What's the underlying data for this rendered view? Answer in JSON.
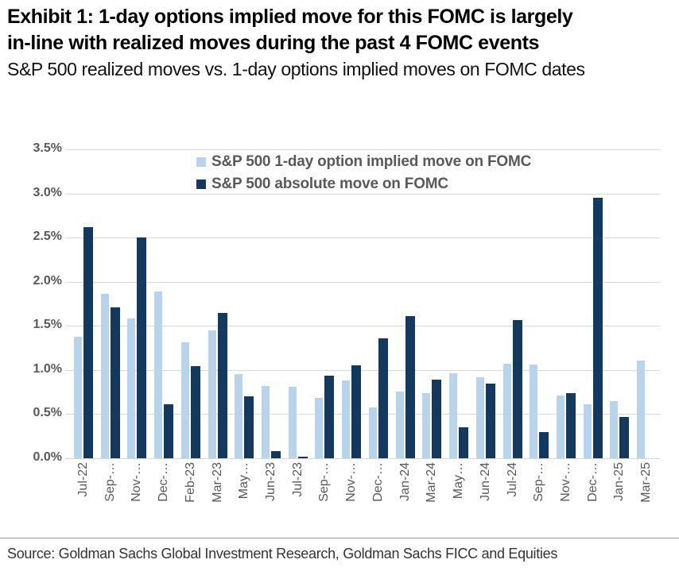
{
  "header": {
    "title_line1": "Exhibit 1: 1-day options implied move for this FOMC is largely",
    "title_line2": "in-line with realized moves during the past 4 FOMC events",
    "subtitle": "S&P 500 realized moves vs. 1-day options implied moves on FOMC dates"
  },
  "footer": {
    "source": "Source: Goldman Sachs Global Investment Research, Goldman Sachs FICC and Equities"
  },
  "colors": {
    "implied_bar": "#B8D4EC",
    "realized_bar": "#14395E",
    "gridline": "#D9D9D9",
    "axis_text": "#595959",
    "legend_text": "#595959"
  },
  "chart_data": {
    "type": "bar",
    "title": "",
    "xlabel": "",
    "ylabel": "",
    "ylim": [
      0,
      3.5
    ],
    "grid": "horizontal",
    "legend_position": "top-inside",
    "y_tick_labels": [
      "3.5%",
      "3.0%",
      "2.5%",
      "2.0%",
      "1.5%",
      "1.0%",
      "0.5%",
      "0.0%"
    ],
    "categories": [
      "Jul-22",
      "Sep-…",
      "Nov-…",
      "Dec-…",
      "Feb-23",
      "Mar-23",
      "May…",
      "Jun-23",
      "Jul-23",
      "Sep-…",
      "Nov-…",
      "Dec-…",
      "Jan-24",
      "Mar-24",
      "May…",
      "Jun-24",
      "Jul-24",
      "Sep-…",
      "Nov-…",
      "Dec-…",
      "Jan-25",
      "Mar-25"
    ],
    "series": [
      {
        "name": "S&P 500 1-day option implied move on FOMC",
        "color": "#B8D4EC",
        "values": [
          1.38,
          1.86,
          1.58,
          1.89,
          1.31,
          1.45,
          0.95,
          0.82,
          0.81,
          0.68,
          0.88,
          0.58,
          0.76,
          0.74,
          0.96,
          0.92,
          1.07,
          1.06,
          0.71,
          0.61,
          0.65,
          1.11
        ]
      },
      {
        "name": "S&P 500 absolute move on FOMC",
        "color": "#14395E",
        "values": [
          2.62,
          1.71,
          2.5,
          0.61,
          1.04,
          1.65,
          0.7,
          0.08,
          0.02,
          0.94,
          1.05,
          1.36,
          1.61,
          0.89,
          0.35,
          0.85,
          1.57,
          0.3,
          0.74,
          2.95,
          0.47,
          null
        ]
      }
    ]
  }
}
